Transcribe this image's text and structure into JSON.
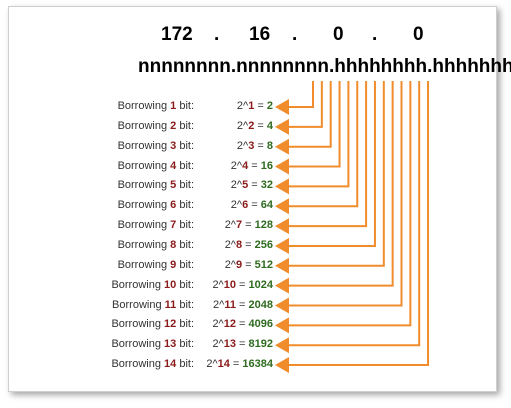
{
  "ip": {
    "octets": [
      "172",
      "16",
      "0",
      "0"
    ],
    "separator": "."
  },
  "mask": "nnnnnnnn.nnnnnnnn.hhhhhhhh.hhhhhhhh",
  "colors": {
    "arrow": "#f08c2c",
    "number": "#8b1a1a",
    "value": "#2e6b1f"
  },
  "rows": [
    {
      "prefix": "Borrowing ",
      "n": "1",
      "suffix": " bit:",
      "base": "2^",
      "value": "2"
    },
    {
      "prefix": "Borrowing ",
      "n": "2",
      "suffix": " bit:",
      "base": "2^",
      "value": "4"
    },
    {
      "prefix": "Borrowing ",
      "n": "3",
      "suffix": " bit:",
      "base": "2^",
      "value": "8"
    },
    {
      "prefix": "Borrowing ",
      "n": "4",
      "suffix": " bit:",
      "base": "2^",
      "value": "16"
    },
    {
      "prefix": "Borrowing ",
      "n": "5",
      "suffix": " bit:",
      "base": "2^",
      "value": "32"
    },
    {
      "prefix": "Borrowing ",
      "n": "6",
      "suffix": " bit:",
      "base": "2^",
      "value": "64"
    },
    {
      "prefix": "Borrowing ",
      "n": "7",
      "suffix": " bit:",
      "base": "2^",
      "value": "128"
    },
    {
      "prefix": "Borrowing ",
      "n": "8",
      "suffix": " bit:",
      "base": "2^",
      "value": "256"
    },
    {
      "prefix": "Borrowing ",
      "n": "9",
      "suffix": " bit:",
      "base": "2^",
      "value": "512"
    },
    {
      "prefix": "Borrowing ",
      "n": "10",
      "suffix": " bit:",
      "base": "2^",
      "value": "1024"
    },
    {
      "prefix": "Borrowing ",
      "n": "11",
      "suffix": " bit:",
      "base": "2^",
      "value": "2048"
    },
    {
      "prefix": "Borrowing ",
      "n": "12",
      "suffix": " bit:",
      "base": "2^",
      "value": "4096"
    },
    {
      "prefix": "Borrowing ",
      "n": "13",
      "suffix": " bit:",
      "base": "2^",
      "value": "8192"
    },
    {
      "prefix": "Borrowing ",
      "n": "14",
      "suffix": " bit:",
      "base": "2^",
      "value": "16384"
    }
  ]
}
